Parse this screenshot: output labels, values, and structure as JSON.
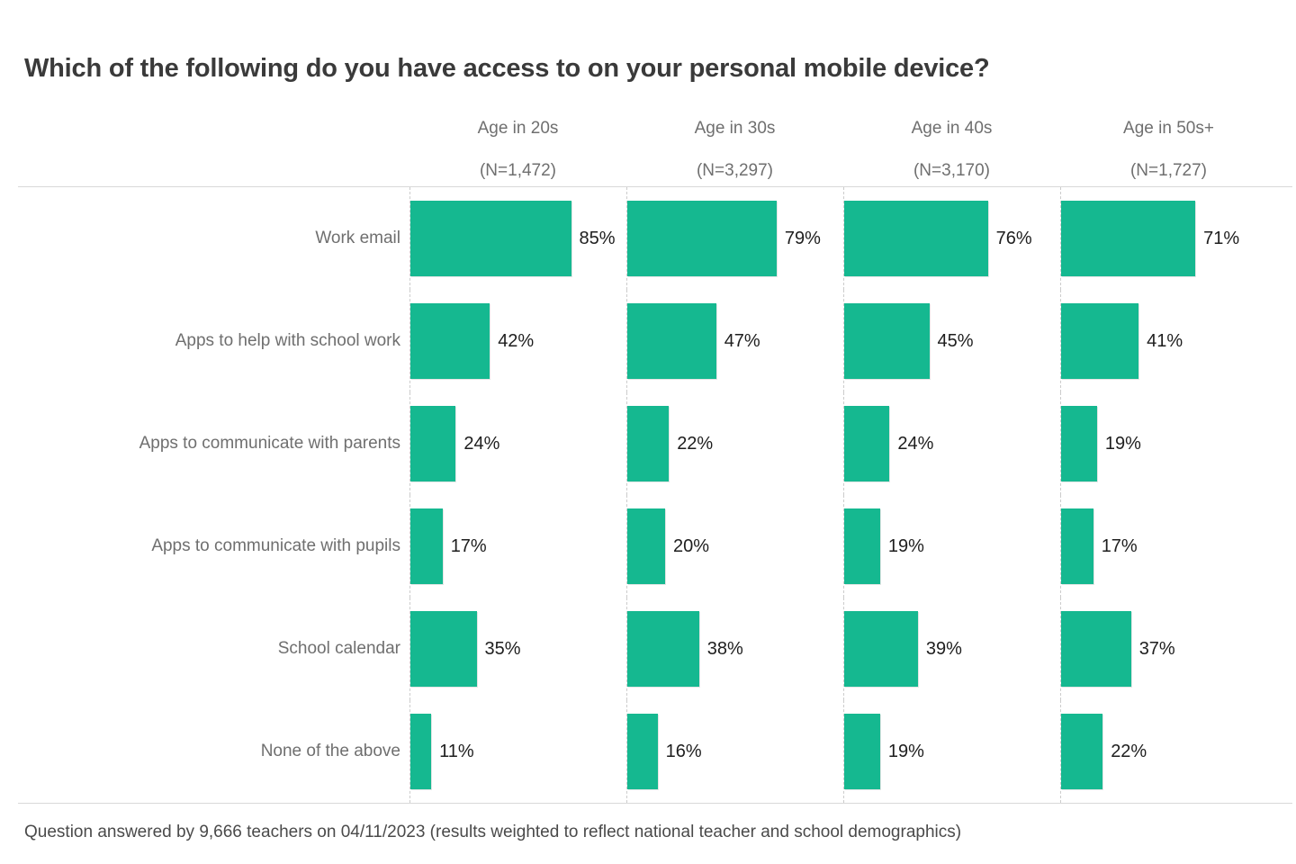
{
  "title": "Which of the following do you have access to on your personal mobile device?",
  "footnote": "Question answered by 9,666 teachers on 04/11/2023 (results weighted to reflect national teacher and school demographics)",
  "chart_data": {
    "type": "bar",
    "orientation": "horizontal",
    "title": "Which of the following do you have access to on your personal mobile device?",
    "categories": [
      "Work email",
      "Apps to help with school work",
      "Apps to communicate with parents",
      "Apps to communicate with pupils",
      "School calendar",
      "None of the above"
    ],
    "groups": [
      {
        "label": "Age in 20s",
        "n_label": "(N=1,472)",
        "values": [
          85,
          42,
          24,
          17,
          35,
          11
        ]
      },
      {
        "label": "Age in 30s",
        "n_label": "(N=3,297)",
        "values": [
          79,
          47,
          22,
          20,
          38,
          16
        ]
      },
      {
        "label": "Age in 40s",
        "n_label": "(N=3,170)",
        "values": [
          76,
          45,
          24,
          19,
          39,
          19
        ]
      },
      {
        "label": "Age in 50s+",
        "n_label": "(N=1,727)",
        "values": [
          71,
          41,
          19,
          17,
          37,
          22
        ]
      }
    ],
    "value_suffix": "%",
    "xlim": [
      0,
      100
    ],
    "bar_color": "#15B890",
    "grid": "dashed vertical separators at each group column",
    "legend": "none",
    "value_labels": "right of each bar"
  }
}
